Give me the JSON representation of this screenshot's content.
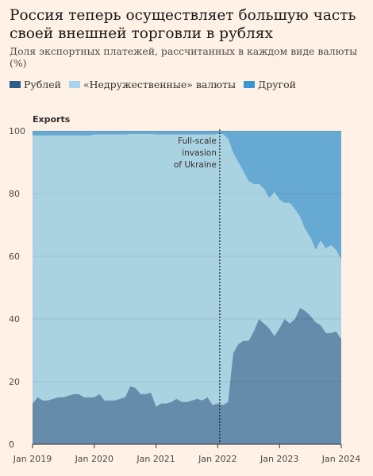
{
  "title": "Россия теперь осуществляет большую часть своей внешней торговли в рублях",
  "subtitle": "Доля экспортных платежей, рассчитанных в каждом виде валюты (%)",
  "colors": {
    "background": "#fff1e5",
    "ruble": "#668cab",
    "unfriendly": "#aad3e2",
    "other": "#66a9d3",
    "legend_ruble": "#2f5d8a",
    "legend_unfriendly": "#a6d4ea",
    "legend_other": "#3a97d3"
  },
  "legend": [
    {
      "label": "Рублей",
      "color_key": "legend_ruble"
    },
    {
      "label": "«Недружественные» валюты",
      "color_key": "legend_unfriendly"
    },
    {
      "label": "Другой",
      "color_key": "legend_other"
    }
  ],
  "chart_data": {
    "type": "area",
    "stacked": true,
    "panel_title": "Exports",
    "x_ticks": [
      "Jan 2019",
      "Jan 2020",
      "Jan 2021",
      "Jan 2022",
      "Jan 2023",
      "Jan 2024"
    ],
    "y_ticks": [
      0,
      20,
      40,
      60,
      80,
      100
    ],
    "ylim": [
      0,
      100
    ],
    "xlim": [
      "2019-01",
      "2024-01"
    ],
    "grid": true,
    "x": [
      "2019-01",
      "2019-02",
      "2019-03",
      "2019-04",
      "2019-05",
      "2019-06",
      "2019-07",
      "2019-08",
      "2019-09",
      "2019-10",
      "2019-11",
      "2019-12",
      "2020-01",
      "2020-02",
      "2020-03",
      "2020-04",
      "2020-05",
      "2020-06",
      "2020-07",
      "2020-08",
      "2020-09",
      "2020-10",
      "2020-11",
      "2020-12",
      "2021-01",
      "2021-02",
      "2021-03",
      "2021-04",
      "2021-05",
      "2021-06",
      "2021-07",
      "2021-08",
      "2021-09",
      "2021-10",
      "2021-11",
      "2021-12",
      "2022-01",
      "2022-02",
      "2022-03",
      "2022-04",
      "2022-05",
      "2022-06",
      "2022-07",
      "2022-08",
      "2022-09",
      "2022-10",
      "2022-11",
      "2022-12",
      "2023-01",
      "2023-02",
      "2023-03",
      "2023-04",
      "2023-05",
      "2023-06",
      "2023-07",
      "2023-08",
      "2023-09",
      "2023-10",
      "2023-11",
      "2023-12",
      "2024-01"
    ],
    "series": [
      {
        "name": "Рублей",
        "color_key": "ruble",
        "values": [
          13,
          15,
          14,
          14,
          14.5,
          15,
          15,
          15.5,
          16,
          16,
          15,
          15,
          15,
          16,
          14,
          14,
          14,
          14.5,
          15,
          18.5,
          18,
          16,
          16,
          16.5,
          12,
          13,
          13,
          13.5,
          14.5,
          13.5,
          13.5,
          14,
          14.5,
          14,
          15,
          12.5,
          13,
          12.5,
          13.5,
          29,
          32,
          33,
          33,
          36,
          40,
          38.5,
          37,
          34.5,
          37,
          40,
          38.5,
          40,
          43.5,
          42.5,
          41,
          39,
          38,
          35.5,
          35.5,
          36,
          33.5
        ]
      },
      {
        "name": "«Недружественные» валюты",
        "color_key": "unfriendly",
        "values": [
          85.5,
          83.5,
          84.5,
          84.5,
          84,
          83.5,
          83.5,
          83,
          82.5,
          82.5,
          83.5,
          83.5,
          83.8,
          82.8,
          84.8,
          84.8,
          84.8,
          84.3,
          83.8,
          80.5,
          81,
          83,
          83,
          82.5,
          86.8,
          85.8,
          85.8,
          85.3,
          84.3,
          85.3,
          85.3,
          84.8,
          84.3,
          84.8,
          83.8,
          86.3,
          86,
          86.5,
          84,
          64,
          58,
          54,
          51,
          47,
          43,
          43,
          41.5,
          46,
          41,
          37,
          38.5,
          35,
          29,
          26,
          25,
          23,
          27,
          27,
          28,
          26,
          25.5
        ]
      }
    ],
    "remainder_series": {
      "name": "Другой",
      "color_key": "other",
      "note": "Fills to 100"
    },
    "annotation": {
      "x": "2022-02",
      "lines": [
        "Full-scale",
        "invasion",
        "of Ukraine"
      ]
    }
  }
}
